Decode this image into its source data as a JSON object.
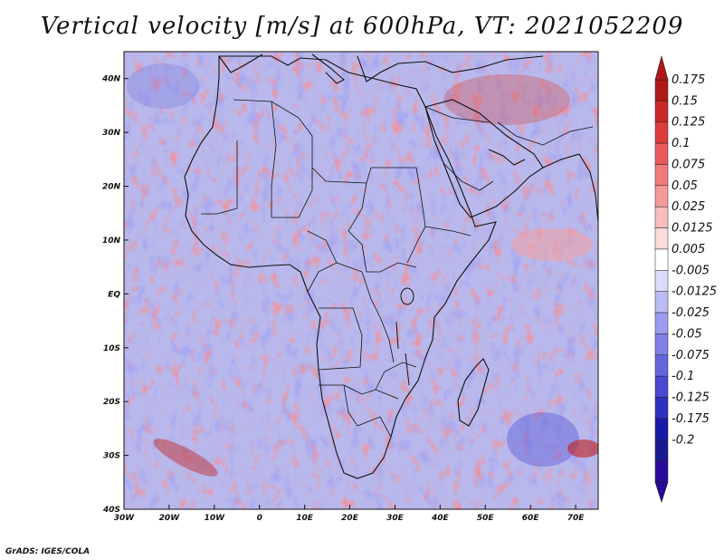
{
  "title": "Vertical velocity [m/s] at 600hPa, VT: 2021052209",
  "credit": "GrADS: IGES/COLA",
  "map": {
    "lon_range": [
      -30,
      75
    ],
    "lat_range": [
      -40,
      45
    ],
    "lat_ticks": [
      {
        "value": 40,
        "label": "40N"
      },
      {
        "value": 30,
        "label": "30N"
      },
      {
        "value": 20,
        "label": "20N"
      },
      {
        "value": 10,
        "label": "10N"
      },
      {
        "value": 0,
        "label": "EQ"
      },
      {
        "value": -10,
        "label": "10S"
      },
      {
        "value": -20,
        "label": "20S"
      },
      {
        "value": -30,
        "label": "30S"
      },
      {
        "value": -40,
        "label": "40S"
      }
    ],
    "lon_ticks": [
      {
        "value": -30,
        "label": "30W"
      },
      {
        "value": -20,
        "label": "20W"
      },
      {
        "value": -10,
        "label": "10W"
      },
      {
        "value": 0,
        "label": "0"
      },
      {
        "value": 10,
        "label": "10E"
      },
      {
        "value": 20,
        "label": "20E"
      },
      {
        "value": 30,
        "label": "30E"
      },
      {
        "value": 40,
        "label": "40E"
      },
      {
        "value": 50,
        "label": "50E"
      },
      {
        "value": 60,
        "label": "60E"
      },
      {
        "value": 70,
        "label": "70E"
      }
    ]
  },
  "colorbar": {
    "labels": [
      "0.175",
      "0.15",
      "0.125",
      "0.1",
      "0.075",
      "0.05",
      "0.025",
      "0.0125",
      "0.005",
      "-0.005",
      "-0.0125",
      "-0.025",
      "-0.05",
      "-0.075",
      "-0.1",
      "-0.125",
      "-0.175",
      "-0.2"
    ],
    "colors": [
      "#b01818",
      "#c82828",
      "#dc3c3c",
      "#e85a5a",
      "#f07a7a",
      "#f59a9a",
      "#f9bcbc",
      "#fcdcdc",
      "#ffffff",
      "#dcdcfa",
      "#bcbcf4",
      "#9c9cee",
      "#8080e6",
      "#6464dc",
      "#4848d0",
      "#3030c0",
      "#1a1aaa",
      "#1a1a90",
      "#2a0a9a"
    ]
  }
}
